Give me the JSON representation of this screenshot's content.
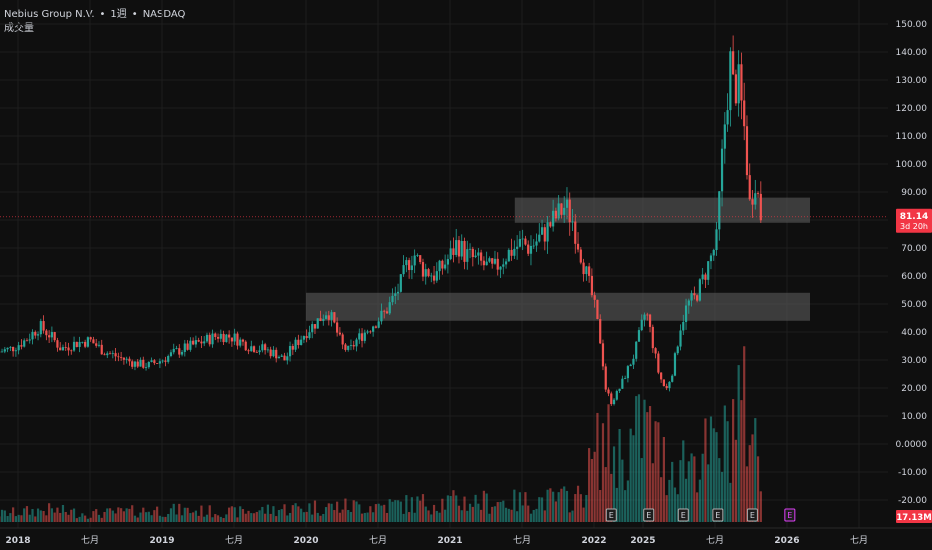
{
  "header": {
    "symbol": "Nebius Group N.V.",
    "separator": "•",
    "interval": "1週",
    "exchange": "NASDAQ",
    "volume_label": "成交量"
  },
  "current_price": {
    "value": "81.14",
    "countdown": "3d 20h",
    "color": "#f23645"
  },
  "volume_badge": {
    "value": "17.13M",
    "color": "#f23645"
  },
  "colors": {
    "up": "#26a69a",
    "down": "#ef5350",
    "zone": "#5a5a5a",
    "background": "#0f0f0f"
  },
  "chart_data": {
    "type": "candlestick",
    "price_axis_ticks": [
      "150.00",
      "140.00",
      "130.00",
      "120.00",
      "110.00",
      "100.00",
      "90.00",
      "80.00",
      "70.00",
      "60.00",
      "50.00",
      "40.00",
      "30.00",
      "20.00",
      "10.00",
      "0.0000",
      "-10.00",
      "-20.00"
    ],
    "time_axis": [
      {
        "label": "2018",
        "bold": true,
        "t": 2018.0
      },
      {
        "label": "七月",
        "bold": false,
        "t": 2018.5
      },
      {
        "label": "2019",
        "bold": true,
        "t": 2019.0
      },
      {
        "label": "七月",
        "bold": false,
        "t": 2019.5
      },
      {
        "label": "2020",
        "bold": true,
        "t": 2020.0
      },
      {
        "label": "七月",
        "bold": false,
        "t": 2020.5
      },
      {
        "label": "2021",
        "bold": true,
        "t": 2021.0
      },
      {
        "label": "七月",
        "bold": false,
        "t": 2021.5
      },
      {
        "label": "2022",
        "bold": true,
        "t": 2022.0
      },
      {
        "label": "2025",
        "bold": true,
        "t": 2022.34
      },
      {
        "label": "七月",
        "bold": false,
        "t": 2022.84
      },
      {
        "label": "2026",
        "bold": true,
        "t": 2023.34
      },
      {
        "label": "七月",
        "bold": false,
        "t": 2023.84
      }
    ],
    "price_path": [
      [
        2017.87,
        33
      ],
      [
        2017.95,
        34
      ],
      [
        2018.05,
        37
      ],
      [
        2018.15,
        42
      ],
      [
        2018.22,
        39
      ],
      [
        2018.3,
        34
      ],
      [
        2018.4,
        36
      ],
      [
        2018.5,
        37
      ],
      [
        2018.6,
        33
      ],
      [
        2018.7,
        31
      ],
      [
        2018.8,
        29
      ],
      [
        2018.9,
        28
      ],
      [
        2019.0,
        30
      ],
      [
        2019.1,
        33
      ],
      [
        2019.2,
        35
      ],
      [
        2019.3,
        37
      ],
      [
        2019.4,
        39
      ],
      [
        2019.5,
        38
      ],
      [
        2019.6,
        35
      ],
      [
        2019.7,
        34
      ],
      [
        2019.8,
        32
      ],
      [
        2019.85,
        30
      ],
      [
        2019.9,
        34
      ],
      [
        2020.0,
        40
      ],
      [
        2020.1,
        45
      ],
      [
        2020.15,
        48
      ],
      [
        2020.2,
        42
      ],
      [
        2020.25,
        35
      ],
      [
        2020.3,
        33
      ],
      [
        2020.35,
        37
      ],
      [
        2020.45,
        42
      ],
      [
        2020.55,
        47
      ],
      [
        2020.65,
        56
      ],
      [
        2020.7,
        64
      ],
      [
        2020.75,
        68
      ],
      [
        2020.8,
        63
      ],
      [
        2020.9,
        60
      ],
      [
        2021.0,
        67
      ],
      [
        2021.05,
        72
      ],
      [
        2021.1,
        68
      ],
      [
        2021.2,
        65
      ],
      [
        2021.3,
        62
      ],
      [
        2021.4,
        68
      ],
      [
        2021.5,
        72
      ],
      [
        2021.55,
        70
      ],
      [
        2021.65,
        75
      ],
      [
        2021.72,
        80
      ],
      [
        2021.8,
        85
      ],
      [
        2021.85,
        80
      ],
      [
        2021.9,
        70
      ],
      [
        2022.0,
        50
      ],
      [
        2022.05,
        35
      ],
      [
        2022.08,
        20
      ],
      [
        2022.12,
        15
      ],
      [
        2022.17,
        19
      ],
      [
        2022.22,
        25
      ],
      [
        2022.28,
        32
      ],
      [
        2022.32,
        40
      ],
      [
        2022.36,
        48
      ],
      [
        2022.4,
        38
      ],
      [
        2022.45,
        25
      ],
      [
        2022.5,
        19
      ],
      [
        2022.55,
        27
      ],
      [
        2022.6,
        42
      ],
      [
        2022.65,
        50
      ],
      [
        2022.7,
        52
      ],
      [
        2022.75,
        58
      ],
      [
        2022.8,
        65
      ],
      [
        2022.85,
        72
      ],
      [
        2022.9,
        110
      ],
      [
        2022.95,
        138
      ],
      [
        2022.97,
        125
      ],
      [
        2023.0,
        130
      ],
      [
        2023.05,
        110
      ],
      [
        2023.08,
        85
      ],
      [
        2023.12,
        95
      ],
      [
        2023.16,
        81.14
      ]
    ],
    "volume_path": [
      [
        2017.87,
        1
      ],
      [
        2018.2,
        1.5
      ],
      [
        2018.5,
        1
      ],
      [
        2019.0,
        1.5
      ],
      [
        2019.5,
        1.2
      ],
      [
        2020.0,
        1.8
      ],
      [
        2020.5,
        2
      ],
      [
        2021.0,
        2.5
      ],
      [
        2021.5,
        2.5
      ],
      [
        2021.9,
        3
      ],
      [
        2022.05,
        10
      ],
      [
        2022.2,
        8
      ],
      [
        2022.35,
        12
      ],
      [
        2022.5,
        7
      ],
      [
        2022.7,
        8
      ],
      [
        2022.9,
        9
      ],
      [
        2023.0,
        15
      ],
      [
        2023.1,
        12
      ],
      [
        2023.16,
        5
      ]
    ],
    "zones": [
      {
        "from": 2021.45,
        "to": 2023.5,
        "low": 79,
        "high": 88
      },
      {
        "from": 2020.0,
        "to": 2023.5,
        "low": 44,
        "high": 54
      }
    ],
    "event_markers": [
      {
        "t": 2022.12,
        "label": "E"
      },
      {
        "t": 2022.38,
        "label": "E"
      },
      {
        "t": 2022.62,
        "label": "E"
      },
      {
        "t": 2022.86,
        "label": "E"
      },
      {
        "t": 2023.1,
        "label": "E"
      },
      {
        "t": 2023.36,
        "label": "E"
      }
    ]
  }
}
